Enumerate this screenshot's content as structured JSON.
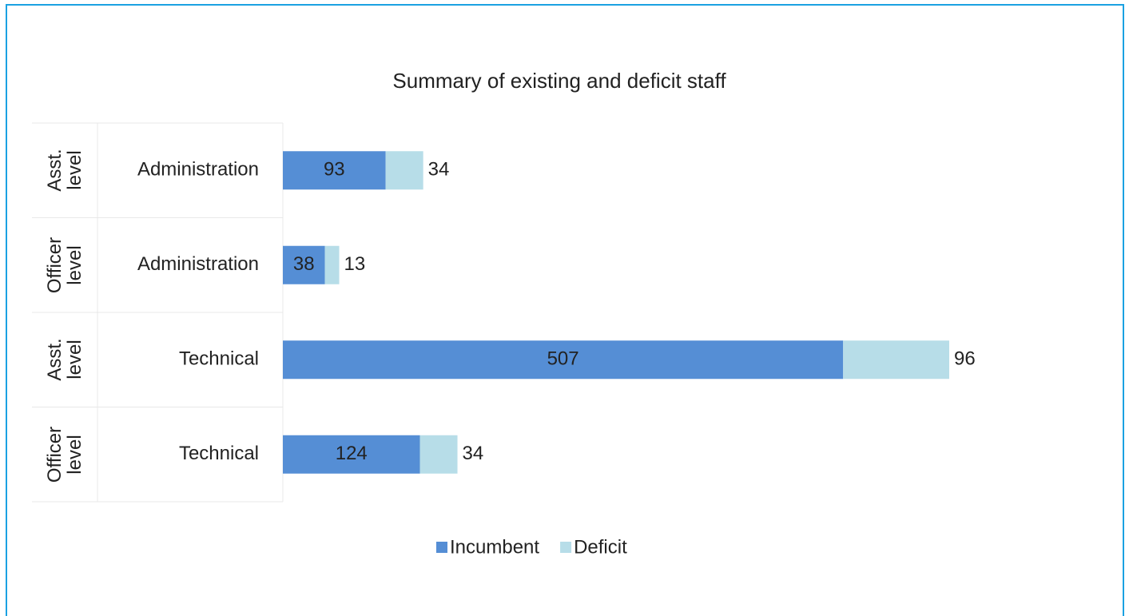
{
  "chart_data": {
    "type": "stacked-bar-horizontal",
    "title": "Summary of existing and deficit staff",
    "groups": [
      "Asst. level",
      "Officer level",
      "Asst. level",
      "Officer level"
    ],
    "categories": [
      "Administration",
      "Administration",
      "Technical",
      "Technical"
    ],
    "series": [
      {
        "name": "Incumbent",
        "color": "#558ed5",
        "values": [
          93,
          38,
          507,
          124
        ]
      },
      {
        "name": "Deficit",
        "color": "#b7dde8",
        "values": [
          34,
          13,
          96,
          34
        ]
      }
    ],
    "legend": "bottom"
  }
}
